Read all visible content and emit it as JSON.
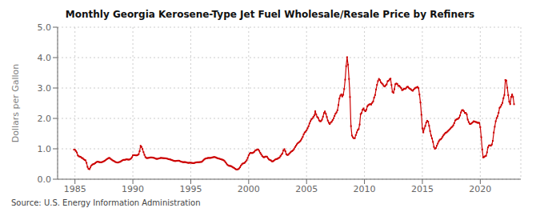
{
  "chart_data": {
    "type": "line",
    "title": "Monthly Georgia Kerosene-Type Jet Fuel Wholesale/Resale Price by Refiners",
    "ylabel": "Dollars per Gallon",
    "annotation": "Source: U.S. Energy Information Administration",
    "color": "#cc0000",
    "marker": "square",
    "line_style": "solid",
    "grid": true,
    "xlim": [
      1983.5,
      2023.5
    ],
    "ylim": [
      0.0,
      5.0
    ],
    "xticks": [
      1985,
      1990,
      1995,
      2000,
      2005,
      2010,
      2015,
      2020
    ],
    "yticks": [
      {
        "value": 0.0,
        "label": "0.0"
      },
      {
        "value": 1.0,
        "label": "1.0"
      },
      {
        "value": 2.0,
        "label": "2.0"
      },
      {
        "value": 3.0,
        "label": "3.0"
      },
      {
        "value": 4.0,
        "label": "4.0"
      },
      {
        "value": 5.0,
        "label": "5.0"
      }
    ],
    "x": [
      1984.917,
      1985.0,
      1985.083,
      1985.167,
      1985.25,
      1985.333,
      1985.417,
      1985.5,
      1985.583,
      1985.667,
      1985.75,
      1985.833,
      1985.917,
      1986.0,
      1986.083,
      1986.167,
      1986.25,
      1986.333,
      1986.417,
      1986.5,
      1986.583,
      1986.667,
      1986.75,
      1986.833,
      1986.917,
      1987.0,
      1987.083,
      1987.167,
      1987.25,
      1987.333,
      1987.417,
      1987.5,
      1987.583,
      1987.667,
      1987.75,
      1987.833,
      1987.917,
      1988.0,
      1988.083,
      1988.167,
      1988.25,
      1988.333,
      1988.417,
      1988.5,
      1988.583,
      1988.667,
      1988.75,
      1988.833,
      1988.917,
      1989.0,
      1989.083,
      1989.167,
      1989.25,
      1989.333,
      1989.417,
      1989.5,
      1989.583,
      1989.667,
      1989.75,
      1989.833,
      1989.917,
      1990.0,
      1990.083,
      1990.167,
      1990.25,
      1990.333,
      1990.417,
      1990.5,
      1990.583,
      1990.667,
      1990.75,
      1990.833,
      1990.917,
      1991.0,
      1991.083,
      1991.167,
      1991.25,
      1991.333,
      1991.417,
      1991.5,
      1991.583,
      1991.667,
      1991.75,
      1991.833,
      1991.917,
      1992.0,
      1992.083,
      1992.167,
      1992.25,
      1992.333,
      1992.417,
      1992.5,
      1992.583,
      1992.667,
      1992.75,
      1992.833,
      1992.917,
      1993.0,
      1993.083,
      1993.167,
      1993.25,
      1993.333,
      1993.417,
      1993.5,
      1993.583,
      1993.667,
      1993.75,
      1993.833,
      1993.917,
      1994.0,
      1994.083,
      1994.167,
      1994.25,
      1994.333,
      1994.417,
      1994.5,
      1994.583,
      1994.667,
      1994.75,
      1994.833,
      1994.917,
      1995.0,
      1995.083,
      1995.167,
      1995.25,
      1995.333,
      1995.417,
      1995.5,
      1995.583,
      1995.667,
      1995.75,
      1995.833,
      1995.917,
      1996.0,
      1996.083,
      1996.167,
      1996.25,
      1996.333,
      1996.417,
      1996.5,
      1996.583,
      1996.667,
      1996.75,
      1996.833,
      1996.917,
      1997.0,
      1997.083,
      1997.167,
      1997.25,
      1997.333,
      1997.417,
      1997.5,
      1997.583,
      1997.667,
      1997.75,
      1997.833,
      1997.917,
      1998.0,
      1998.083,
      1998.167,
      1998.25,
      1998.333,
      1998.417,
      1998.5,
      1998.583,
      1998.667,
      1998.75,
      1998.833,
      1998.917,
      1999.0,
      1999.083,
      1999.167,
      1999.25,
      1999.333,
      1999.417,
      1999.5,
      1999.583,
      1999.667,
      1999.75,
      1999.833,
      1999.917,
      2000.0,
      2000.083,
      2000.167,
      2000.25,
      2000.333,
      2000.417,
      2000.5,
      2000.583,
      2000.667,
      2000.75,
      2000.833,
      2000.917,
      2001.0,
      2001.083,
      2001.167,
      2001.25,
      2001.333,
      2001.417,
      2001.5,
      2001.583,
      2001.667,
      2001.75,
      2001.833,
      2001.917,
      2002.0,
      2002.083,
      2002.167,
      2002.25,
      2002.333,
      2002.417,
      2002.5,
      2002.583,
      2002.667,
      2002.75,
      2002.833,
      2002.917,
      2003.0,
      2003.083,
      2003.167,
      2003.25,
      2003.333,
      2003.417,
      2003.5,
      2003.583,
      2003.667,
      2003.75,
      2003.833,
      2003.917,
      2004.0,
      2004.083,
      2004.167,
      2004.25,
      2004.333,
      2004.417,
      2004.5,
      2004.583,
      2004.667,
      2004.75,
      2004.833,
      2004.917,
      2005.0,
      2005.083,
      2005.167,
      2005.25,
      2005.333,
      2005.417,
      2005.5,
      2005.583,
      2005.667,
      2005.75,
      2005.833,
      2005.917,
      2006.0,
      2006.083,
      2006.167,
      2006.25,
      2006.333,
      2006.417,
      2006.5,
      2006.583,
      2006.667,
      2006.75,
      2006.833,
      2006.917,
      2007.0,
      2007.083,
      2007.167,
      2007.25,
      2007.333,
      2007.417,
      2007.5,
      2007.583,
      2007.667,
      2007.75,
      2007.833,
      2007.917,
      2008.0,
      2008.083,
      2008.167,
      2008.25,
      2008.333,
      2008.417,
      2008.5,
      2008.583,
      2008.667,
      2008.75,
      2008.833,
      2008.917,
      2009.0,
      2009.083,
      2009.167,
      2009.25,
      2009.333,
      2009.417,
      2009.5,
      2009.583,
      2009.667,
      2009.75,
      2009.833,
      2009.917,
      2010.0,
      2010.083,
      2010.167,
      2010.25,
      2010.333,
      2010.417,
      2010.5,
      2010.583,
      2010.667,
      2010.75,
      2010.833,
      2010.917,
      2011.0,
      2011.083,
      2011.167,
      2011.25,
      2011.333,
      2011.417,
      2011.5,
      2011.583,
      2011.667,
      2011.75,
      2011.833,
      2011.917,
      2012.0,
      2012.083,
      2012.167,
      2012.25,
      2012.333,
      2012.417,
      2012.5,
      2012.583,
      2012.667,
      2012.75,
      2012.833,
      2012.917,
      2013.0,
      2013.083,
      2013.167,
      2013.25,
      2013.333,
      2013.417,
      2013.5,
      2013.583,
      2013.667,
      2013.75,
      2013.833,
      2013.917,
      2014.0,
      2014.083,
      2014.167,
      2014.25,
      2014.333,
      2014.417,
      2014.5,
      2014.583,
      2014.667,
      2014.75,
      2014.833,
      2014.917,
      2015.0,
      2015.083,
      2015.167,
      2015.25,
      2015.333,
      2015.417,
      2015.5,
      2015.583,
      2015.667,
      2015.75,
      2015.833,
      2015.917,
      2016.0,
      2016.083,
      2016.167,
      2016.25,
      2016.333,
      2016.417,
      2016.5,
      2016.583,
      2016.667,
      2016.75,
      2016.833,
      2016.917,
      2017.0,
      2017.083,
      2017.167,
      2017.25,
      2017.333,
      2017.417,
      2017.5,
      2017.583,
      2017.667,
      2017.75,
      2017.833,
      2017.917,
      2018.0,
      2018.083,
      2018.167,
      2018.25,
      2018.333,
      2018.417,
      2018.5,
      2018.583,
      2018.667,
      2018.75,
      2018.833,
      2018.917,
      2019.0,
      2019.083,
      2019.167,
      2019.25,
      2019.333,
      2019.417,
      2019.5,
      2019.583,
      2019.667,
      2019.75,
      2019.833,
      2019.917,
      2020.0,
      2020.083,
      2020.167,
      2020.25,
      2020.333,
      2020.417,
      2020.5,
      2020.583,
      2020.667,
      2020.75,
      2020.833,
      2020.917,
      2021.0,
      2021.083,
      2021.167,
      2021.25,
      2021.333,
      2021.417,
      2021.5,
      2021.583,
      2021.667,
      2021.75,
      2021.833,
      2021.917,
      2022.0,
      2022.083,
      2022.167,
      2022.25,
      2022.333,
      2022.417,
      2022.5,
      2022.583,
      2022.667,
      2022.75,
      2022.833,
      2022.917
    ],
    "values": [
      0.974,
      0.965,
      0.927,
      0.877,
      0.782,
      0.754,
      0.741,
      0.731,
      0.7,
      0.694,
      0.657,
      0.633,
      0.62,
      0.537,
      0.406,
      0.34,
      0.33,
      0.388,
      0.448,
      0.479,
      0.497,
      0.508,
      0.53,
      0.554,
      0.575,
      0.573,
      0.564,
      0.558,
      0.556,
      0.562,
      0.577,
      0.592,
      0.609,
      0.634,
      0.66,
      0.68,
      0.698,
      0.698,
      0.668,
      0.643,
      0.619,
      0.604,
      0.586,
      0.566,
      0.554,
      0.548,
      0.551,
      0.566,
      0.573,
      0.597,
      0.617,
      0.634,
      0.637,
      0.637,
      0.654,
      0.651,
      0.646,
      0.644,
      0.654,
      0.68,
      0.72,
      0.785,
      0.791,
      0.79,
      0.784,
      0.785,
      0.797,
      0.82,
      0.921,
      1.097,
      1.063,
      0.991,
      0.89,
      0.802,
      0.726,
      0.699,
      0.696,
      0.699,
      0.706,
      0.715,
      0.714,
      0.714,
      0.706,
      0.7,
      0.686,
      0.672,
      0.669,
      0.672,
      0.684,
      0.692,
      0.7,
      0.698,
      0.695,
      0.691,
      0.689,
      0.687,
      0.682,
      0.671,
      0.66,
      0.653,
      0.648,
      0.634,
      0.623,
      0.609,
      0.601,
      0.597,
      0.602,
      0.607,
      0.609,
      0.607,
      0.591,
      0.578,
      0.568,
      0.561,
      0.562,
      0.564,
      0.558,
      0.547,
      0.539,
      0.538,
      0.542,
      0.543,
      0.537,
      0.531,
      0.53,
      0.537,
      0.549,
      0.556,
      0.558,
      0.558,
      0.561,
      0.566,
      0.568,
      0.59,
      0.62,
      0.65,
      0.674,
      0.685,
      0.692,
      0.699,
      0.699,
      0.699,
      0.703,
      0.714,
      0.72,
      0.73,
      0.726,
      0.715,
      0.7,
      0.689,
      0.68,
      0.67,
      0.659,
      0.649,
      0.641,
      0.625,
      0.597,
      0.558,
      0.515,
      0.477,
      0.451,
      0.437,
      0.435,
      0.427,
      0.406,
      0.385,
      0.369,
      0.341,
      0.323,
      0.319,
      0.327,
      0.352,
      0.392,
      0.447,
      0.49,
      0.516,
      0.527,
      0.543,
      0.581,
      0.625,
      0.7,
      0.786,
      0.84,
      0.87,
      0.858,
      0.863,
      0.882,
      0.907,
      0.946,
      0.96,
      0.981,
      0.972,
      0.932,
      0.868,
      0.818,
      0.763,
      0.731,
      0.72,
      0.741,
      0.745,
      0.74,
      0.691,
      0.651,
      0.635,
      0.619,
      0.588,
      0.588,
      0.605,
      0.635,
      0.656,
      0.665,
      0.675,
      0.695,
      0.713,
      0.763,
      0.813,
      0.847,
      0.946,
      0.987,
      0.92,
      0.821,
      0.798,
      0.803,
      0.838,
      0.876,
      0.907,
      0.924,
      0.951,
      0.993,
      1.053,
      1.101,
      1.148,
      1.187,
      1.212,
      1.243,
      1.276,
      1.33,
      1.39,
      1.476,
      1.538,
      1.565,
      1.608,
      1.673,
      1.741,
      1.834,
      1.908,
      1.965,
      1.998,
      2.047,
      2.097,
      2.231,
      2.128,
      2.048,
      2.015,
      1.934,
      1.907,
      1.91,
      1.96,
      2.055,
      2.177,
      2.227,
      2.152,
      2.047,
      1.929,
      1.858,
      1.814,
      1.861,
      1.891,
      1.944,
      2.001,
      2.082,
      2.155,
      2.197,
      2.268,
      2.441,
      2.653,
      2.748,
      2.791,
      2.722,
      2.776,
      2.967,
      3.274,
      3.718,
      4.014,
      3.767,
      3.298,
      2.703,
      1.747,
      1.436,
      1.38,
      1.346,
      1.35,
      1.45,
      1.538,
      1.617,
      1.649,
      1.799,
      2.143,
      2.176,
      2.284,
      2.327,
      2.268,
      2.236,
      2.284,
      2.4,
      2.437,
      2.459,
      2.47,
      2.457,
      2.512,
      2.558,
      2.683,
      2.77,
      2.952,
      3.104,
      3.228,
      3.298,
      3.261,
      3.19,
      3.154,
      3.12,
      3.067,
      3.05,
      3.087,
      3.119,
      3.224,
      3.239,
      3.282,
      3.307,
      3.098,
      2.875,
      2.841,
      2.961,
      3.125,
      3.148,
      3.134,
      3.07,
      3.071,
      3.039,
      2.996,
      2.928,
      2.944,
      2.979,
      2.968,
      2.99,
      3.036,
      3.04,
      3.005,
      2.974,
      2.959,
      2.927,
      2.909,
      2.948,
      2.982,
      3.009,
      3.017,
      3.036,
      2.997,
      2.785,
      2.524,
      2.123,
      1.672,
      1.538,
      1.667,
      1.751,
      1.865,
      1.922,
      1.895,
      1.757,
      1.582,
      1.436,
      1.343,
      1.227,
      1.063,
      1.002,
      1.023,
      1.102,
      1.174,
      1.247,
      1.298,
      1.312,
      1.344,
      1.399,
      1.452,
      1.49,
      1.529,
      1.537,
      1.567,
      1.598,
      1.635,
      1.667,
      1.7,
      1.726,
      1.77,
      1.844,
      1.932,
      1.958,
      1.98,
      1.987,
      2.022,
      2.095,
      2.198,
      2.268,
      2.275,
      2.237,
      2.178,
      2.183,
      2.134,
      1.961,
      1.88,
      1.823,
      1.817,
      1.838,
      1.869,
      1.904,
      1.899,
      1.884,
      1.879,
      1.855,
      1.856,
      1.854,
      1.712,
      1.381,
      0.976,
      0.72,
      0.728,
      0.757,
      0.77,
      0.883,
      1.048,
      1.109,
      1.115,
      1.102,
      1.142,
      1.263,
      1.535,
      1.728,
      1.906,
      2.012,
      2.073,
      2.185,
      2.347,
      2.383,
      2.448,
      2.51,
      2.664,
      2.771,
      3.264,
      3.245,
      3.01,
      2.763,
      2.551,
      2.474,
      2.706,
      2.784,
      2.704,
      2.466
    ]
  }
}
